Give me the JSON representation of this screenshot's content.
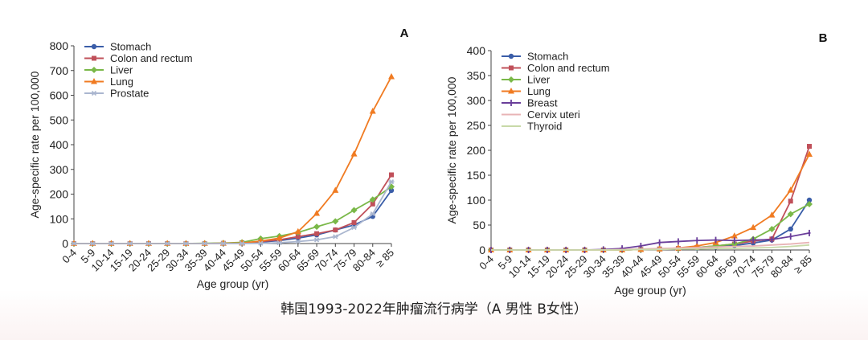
{
  "caption": "韩国1993-2022年肿瘤流行病学（A 男性 B女性）",
  "chart_data": [
    {
      "type": "line",
      "panel_label": "A",
      "xlabel": "Age group (yr)",
      "ylabel": "Age-specific rate per 100,000",
      "ylim": [
        0,
        800
      ],
      "yticks": [
        0,
        100,
        200,
        300,
        400,
        500,
        600,
        700,
        800
      ],
      "grid": false,
      "legend_position": "top-left",
      "categories": [
        "0-4",
        "5-9",
        "10-14",
        "15-19",
        "20-24",
        "25-29",
        "30-34",
        "35-39",
        "40-44",
        "45-49",
        "50-54",
        "55-59",
        "60-64",
        "65-69",
        "70-74",
        "75-79",
        "80-84",
        "≥ 85"
      ],
      "series": [
        {
          "name": "Stomach",
          "color": "#3a5da8",
          "marker": "circle",
          "values": [
            0,
            0,
            0,
            0,
            0,
            0,
            0,
            0,
            1,
            2,
            6,
            12,
            22,
            35,
            55,
            75,
            110,
            215
          ]
        },
        {
          "name": "Colon and rectum",
          "color": "#c0505a",
          "marker": "square",
          "values": [
            0,
            0,
            0,
            0,
            0,
            0,
            0,
            0,
            1,
            3,
            8,
            15,
            28,
            40,
            55,
            85,
            160,
            278
          ]
        },
        {
          "name": "Liver",
          "color": "#7ab848",
          "marker": "diamond",
          "values": [
            0,
            0,
            0,
            0,
            0,
            0,
            0,
            1,
            2,
            5,
            20,
            30,
            45,
            68,
            90,
            135,
            178,
            230
          ]
        },
        {
          "name": "Lung",
          "color": "#f07b22",
          "marker": "triangle",
          "values": [
            0,
            0,
            0,
            0,
            0,
            0,
            0,
            0,
            1,
            2,
            10,
            22,
            48,
            122,
            215,
            362,
            535,
            675
          ]
        },
        {
          "name": "Prostate",
          "color": "#aab6cf",
          "marker": "star",
          "values": [
            0,
            0,
            0,
            0,
            0,
            0,
            0,
            0,
            0,
            0,
            1,
            3,
            8,
            15,
            28,
            65,
            120,
            250
          ]
        }
      ]
    },
    {
      "type": "line",
      "panel_label": "B",
      "xlabel": "Age group (yr)",
      "ylabel": "Age-specific rate per 100,000",
      "ylim": [
        0,
        400
      ],
      "yticks": [
        0,
        50,
        100,
        150,
        200,
        250,
        300,
        350,
        400
      ],
      "grid": false,
      "legend_position": "top-left",
      "categories": [
        "0-4",
        "5-9",
        "10-14",
        "15-19",
        "20-24",
        "25-29",
        "30-34",
        "35-39",
        "40-44",
        "45-49",
        "50-54",
        "55-59",
        "60-64",
        "65-69",
        "70-74",
        "75-79",
        "80-84",
        "≥ 85"
      ],
      "series": [
        {
          "name": "Stomach",
          "color": "#3a5da8",
          "marker": "circle",
          "values": [
            0,
            0,
            0,
            0,
            0,
            0,
            0,
            0,
            1,
            2,
            3,
            4,
            6,
            9,
            14,
            20,
            42,
            100
          ]
        },
        {
          "name": "Colon and rectum",
          "color": "#c0505a",
          "marker": "square",
          "values": [
            0,
            0,
            0,
            0,
            0,
            0,
            0,
            0,
            1,
            2,
            3,
            5,
            8,
            12,
            18,
            22,
            98,
            208
          ]
        },
        {
          "name": "Liver",
          "color": "#7ab848",
          "marker": "diamond",
          "values": [
            0,
            0,
            0,
            0,
            0,
            0,
            0,
            0,
            1,
            2,
            3,
            5,
            8,
            12,
            22,
            42,
            72,
            92
          ]
        },
        {
          "name": "Lung",
          "color": "#f07b22",
          "marker": "triangle",
          "values": [
            0,
            0,
            0,
            0,
            0,
            0,
            0,
            0,
            1,
            2,
            4,
            8,
            15,
            28,
            45,
            70,
            120,
            192
          ]
        },
        {
          "name": "Breast",
          "color": "#6a3e9a",
          "marker": "plus",
          "values": [
            0,
            0,
            0,
            0,
            0,
            0,
            1,
            3,
            8,
            15,
            17,
            19,
            20,
            19,
            20,
            21,
            27,
            34
          ]
        },
        {
          "name": "Cervix uteri",
          "color": "#e8b4b6",
          "marker": "none",
          "values": [
            0,
            0,
            0,
            0,
            0,
            0,
            0,
            1,
            2,
            3,
            4,
            5,
            6,
            7,
            8,
            10,
            12,
            15
          ]
        },
        {
          "name": "Thyroid",
          "color": "#c8d9a8",
          "marker": "none",
          "values": [
            0,
            0,
            0,
            0,
            0,
            0,
            0,
            0,
            1,
            1,
            2,
            2,
            3,
            3,
            4,
            5,
            7,
            10
          ]
        }
      ]
    }
  ]
}
